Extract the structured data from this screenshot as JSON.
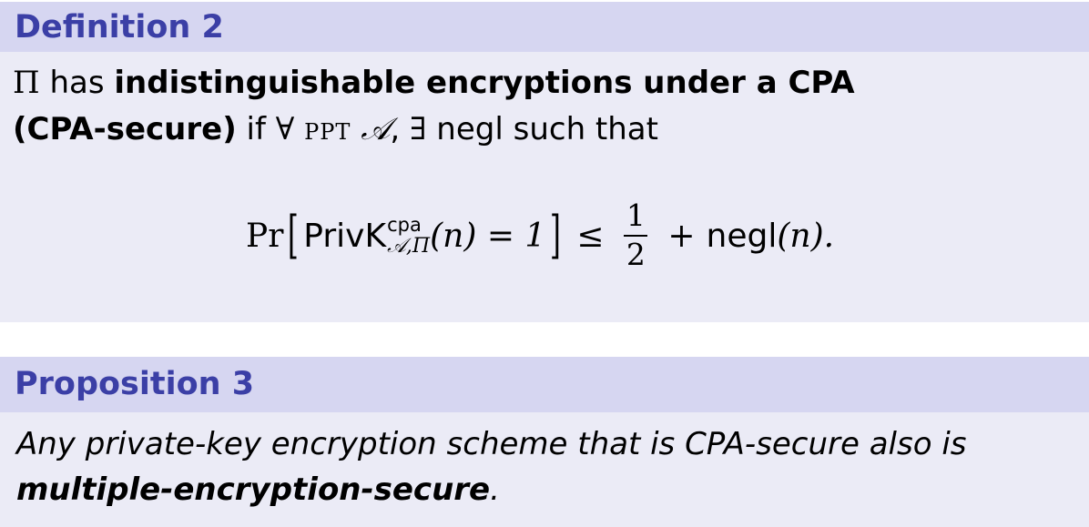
{
  "definition": {
    "title": "Definition 2",
    "line1": {
      "symbol": "Π",
      "text": " has ",
      "bold": "indistinguishable encryptions under a CPA"
    },
    "line2": {
      "bold": "(CPA-secure)",
      "if": " if ",
      "forall": "∀",
      "ppt": "PPT",
      "adversary": "𝒜",
      "comma": ",",
      "exists": "∃",
      "rest": " negl such that"
    },
    "equation": {
      "pr": "Pr",
      "left_bracket": "[",
      "privk": "PrivK",
      "sup": "cpa",
      "sub": "𝒜,Π",
      "arg": "(n) = 1",
      "right_bracket": "]",
      "leq": "≤",
      "numerator": "1",
      "denominator": "2",
      "plus": "+",
      "negl": "negl",
      "negl_arg": "(n)."
    }
  },
  "proposition": {
    "title": "Proposition 3",
    "line1": "Any private-key encryption scheme that is CPA-secure also is",
    "line2_bold": "multiple-encryption-secure",
    "line2_end": "."
  }
}
